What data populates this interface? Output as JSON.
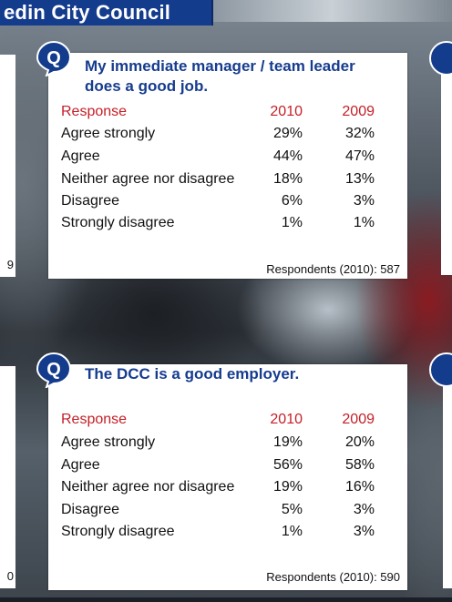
{
  "banner": {
    "title": "edin City Council"
  },
  "left_edges": {
    "top_card_tail": "9",
    "bottom_card_tail": "0"
  },
  "badge_letter": "Q",
  "cards": [
    {
      "question_line1": "My immediate manager / team leader",
      "question_line2": "does a good job.",
      "header": {
        "response": "Response",
        "y2010": "2010",
        "y2009": "2009"
      },
      "rows": [
        {
          "label": "Agree strongly",
          "y2010": "29%",
          "y2009": "32%"
        },
        {
          "label": "Agree",
          "y2010": "44%",
          "y2009": "47%"
        },
        {
          "label": "Neither agree nor disagree",
          "y2010": "18%",
          "y2009": "13%"
        },
        {
          "label": "Disagree",
          "y2010": "6%",
          "y2009": "3%"
        },
        {
          "label": "Strongly disagree",
          "y2010": "1%",
          "y2009": "1%"
        }
      ],
      "respondents": "Respondents (2010): 587"
    },
    {
      "question_line1": "The DCC is a good employer.",
      "question_line2": "",
      "header": {
        "response": "Response",
        "y2010": "2010",
        "y2009": "2009"
      },
      "rows": [
        {
          "label": "Agree strongly",
          "y2010": "19%",
          "y2009": "20%"
        },
        {
          "label": "Agree",
          "y2010": "56%",
          "y2009": "58%"
        },
        {
          "label": "Neither agree nor disagree",
          "y2010": "19%",
          "y2009": "16%"
        },
        {
          "label": "Disagree",
          "y2010": "5%",
          "y2009": "3%"
        },
        {
          "label": "Strongly disagree",
          "y2010": "1%",
          "y2009": "3%"
        }
      ],
      "respondents": "Respondents (2010): 590"
    }
  ],
  "colors": {
    "banner_blue": "#143c8c",
    "question_blue": "#163c8f",
    "header_red": "#c41e26"
  }
}
